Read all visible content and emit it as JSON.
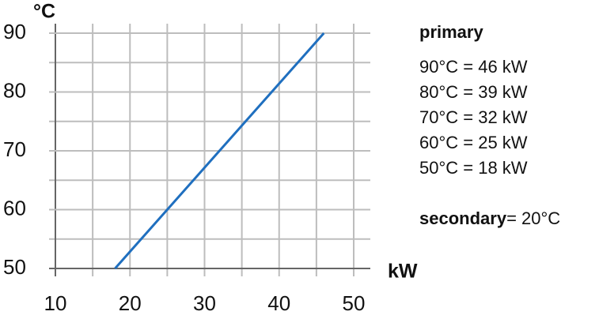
{
  "chart_data": {
    "type": "line",
    "x_label": "kW",
    "y_label": "°C",
    "x": [
      18,
      25,
      32,
      39,
      46
    ],
    "series": [
      {
        "name": "primary",
        "color": "#1f6fbf",
        "values": [
          50,
          60,
          70,
          80,
          90
        ]
      }
    ],
    "xlim": [
      10,
      50
    ],
    "ylim": [
      50,
      90
    ],
    "xticks": [
      10,
      20,
      30,
      40,
      50
    ],
    "yticks": [
      50,
      60,
      70,
      80,
      90
    ],
    "x_minor_ticks": [
      15,
      25,
      35,
      45
    ],
    "y_minor_ticks": [
      55,
      65,
      75,
      85
    ],
    "grid": true,
    "annotations": {
      "title": "primary",
      "lines": [
        "90°C = 46 kW",
        "80°C = 39 kW",
        "70°C = 32 kW",
        "60°C = 25 kW",
        "50°C = 18 kW"
      ],
      "secondary_label": "secondary",
      "secondary_value": "= 20°C"
    }
  }
}
